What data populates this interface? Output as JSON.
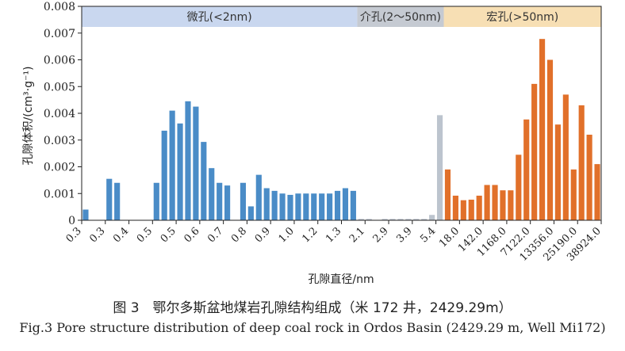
{
  "chart_data": {
    "type": "bar",
    "ylabel": "孔隙体积/(cm³·g⁻¹)",
    "xlabel": "孔隙直径/nm",
    "ylim": [
      0,
      0.008
    ],
    "yticks": [
      "0",
      "0.001",
      "0.002",
      "0.003",
      "0.004",
      "0.005",
      "0.006",
      "0.007",
      "0.008"
    ],
    "xticks": [
      "0.3",
      "0.3",
      "0.4",
      "0.5",
      "0.5",
      "0.6",
      "0.7",
      "0.8",
      "0.9",
      "1.0",
      "1.2",
      "1.3",
      "2.1",
      "2.9",
      "3.9",
      "5.4",
      "18.0",
      "142.0",
      "1168.0",
      "7122.0",
      "13356.0",
      "25190.0",
      "38924.0"
    ],
    "regions": [
      {
        "label": "微孔(<2nm)",
        "color": "#c9d7ef",
        "bar_color": "#4a8cc7"
      },
      {
        "label": "介孔(2～50nm)",
        "color": "#c5cad2",
        "bar_color": "#bcc4ce"
      },
      {
        "label": "宏孔(>50nm)",
        "color": "#f7dfb4",
        "bar_color": "#e1702a"
      }
    ],
    "series": [
      {
        "region": 0,
        "values": [
          0.0004,
          0,
          0,
          0.00155,
          0.0014,
          0,
          0,
          0,
          0,
          0.0014,
          0.00335,
          0.0041,
          0.00362,
          0.00445,
          0.00425,
          0.00293,
          0.00195,
          0.0014,
          0.0013,
          0,
          0.0014,
          0.00052,
          0.0017,
          0.0012,
          0.0011,
          0.001,
          0.00095,
          0.001,
          0.001,
          0.001,
          0.001,
          0.001,
          0.0011,
          0.0012,
          0.0011
        ]
      },
      {
        "region": 1,
        "values": [
          5e-05,
          5e-05,
          0,
          5e-05,
          5e-05,
          5e-05,
          5e-05,
          5e-05,
          5e-05,
          0.0002,
          0.00393
        ]
      },
      {
        "region": 2,
        "values": [
          0.0019,
          0.00092,
          0.00075,
          0.00077,
          0.00092,
          0.00132,
          0.00132,
          0.00112,
          0.00112,
          0.00245,
          0.00377,
          0.0051,
          0.00678,
          0.006,
          0.00358,
          0.0047,
          0.0019,
          0.0043,
          0.0032,
          0.0021
        ]
      }
    ]
  },
  "captions": {
    "cn": "图 3　鄂尔多斯盆地煤岩孔隙结构组成（米 172 井，2429.29m）",
    "en": "Fig.3 Pore structure distribution of deep coal rock in Ordos Basin (2429.29 m, Well Mi172)"
  }
}
